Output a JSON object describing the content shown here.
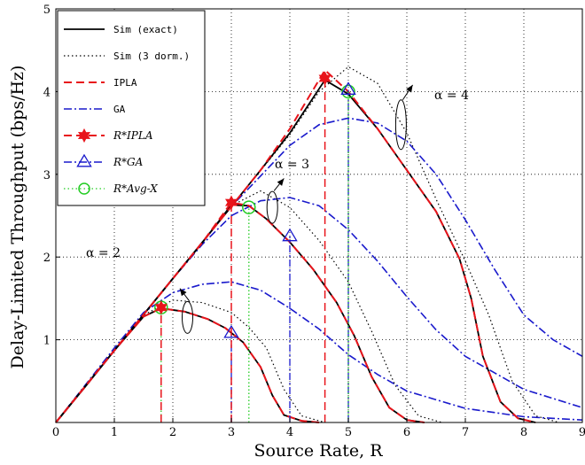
{
  "chart_data": {
    "type": "line",
    "title": "",
    "xlabel": "Source Rate, R",
    "ylabel": "Delay-Limited Throughput (bps/Hz)",
    "xlim": [
      0,
      9
    ],
    "ylim": [
      0,
      5
    ],
    "xticks": [
      "0",
      "1",
      "2",
      "3",
      "4",
      "5",
      "6",
      "7",
      "8",
      "9"
    ],
    "yticks": [
      "1",
      "2",
      "3",
      "4",
      "5"
    ],
    "grid": true,
    "legend_position": "top-left",
    "legend": [
      {
        "label": "Sim (exact)",
        "style": "solid",
        "color": "#000000"
      },
      {
        "label": "Sim (3 dorm.)",
        "style": "dotted",
        "color": "#000000"
      },
      {
        "label": "IPLA",
        "style": "dashed",
        "color": "#e8141b"
      },
      {
        "label": "GA",
        "style": "dashdot",
        "color": "#1a1acc"
      },
      {
        "label": "R*IPLA",
        "style": "dashed",
        "marker": "hexagram",
        "color": "#e8141b"
      },
      {
        "label": "R*GA",
        "style": "dashdot",
        "marker": "triangle",
        "color": "#1a1acc"
      },
      {
        "label": "R*Avg-X",
        "style": "dotted",
        "marker": "circle",
        "color": "#22cc22"
      }
    ],
    "groups": [
      {
        "alpha_label": "α = 2",
        "sim_exact": {
          "x": [
            0,
            0.5,
            1,
            1.5,
            1.8,
            2.2,
            2.6,
            2.9,
            3.2,
            3.5,
            3.7,
            3.9,
            4.2,
            4.5
          ],
          "y": [
            0,
            0.43,
            0.87,
            1.28,
            1.38,
            1.34,
            1.25,
            1.14,
            0.97,
            0.67,
            0.33,
            0.09,
            0.02,
            0
          ]
        },
        "sim_dorm": {
          "x": [
            0,
            0.5,
            1,
            1.5,
            2,
            2.5,
            3,
            3.3,
            3.6,
            3.9,
            4.2,
            4.6
          ],
          "y": [
            0,
            0.43,
            0.87,
            1.3,
            1.48,
            1.45,
            1.33,
            1.15,
            0.9,
            0.4,
            0.08,
            0
          ]
        },
        "ipla": {
          "x": [
            0,
            0.5,
            1,
            1.5,
            1.8,
            2.2,
            2.6,
            2.9,
            3.2,
            3.5,
            3.7,
            3.9,
            4.2,
            4.5
          ],
          "y": [
            0,
            0.43,
            0.87,
            1.28,
            1.38,
            1.34,
            1.25,
            1.14,
            0.97,
            0.67,
            0.33,
            0.09,
            0.02,
            0
          ]
        },
        "ga": {
          "x": [
            0,
            0.5,
            1,
            1.5,
            2,
            2.5,
            3,
            3.5,
            4,
            4.5,
            5,
            5.5,
            6,
            7,
            8,
            9
          ],
          "y": [
            0,
            0.45,
            0.9,
            1.33,
            1.57,
            1.67,
            1.7,
            1.6,
            1.38,
            1.13,
            0.82,
            0.58,
            0.38,
            0.17,
            0.07,
            0.03
          ]
        },
        "r_ipla": {
          "x": 1.8,
          "y": 1.39
        },
        "r_ga": {
          "x": 3.0,
          "y": 1.08
        },
        "r_avg": {
          "x": 1.8,
          "y": 1.39
        }
      },
      {
        "alpha_label": "α = 3",
        "sim_exact": {
          "x": [
            0,
            1,
            2,
            2.5,
            3,
            3.3,
            3.6,
            4,
            4.4,
            4.8,
            5.1,
            5.4,
            5.7,
            6,
            6.3
          ],
          "y": [
            0,
            0.87,
            1.74,
            2.17,
            2.63,
            2.62,
            2.46,
            2.18,
            1.85,
            1.45,
            1.05,
            0.55,
            0.18,
            0.03,
            0
          ]
        },
        "sim_dorm": {
          "x": [
            0,
            1,
            2,
            2.5,
            3,
            3.5,
            4,
            4.5,
            5,
            5.4,
            5.8,
            6.2,
            6.6
          ],
          "y": [
            0,
            0.87,
            1.74,
            2.17,
            2.62,
            2.8,
            2.6,
            2.2,
            1.7,
            1.1,
            0.45,
            0.08,
            0
          ]
        },
        "ipla": {
          "x": [
            0,
            1,
            2,
            2.5,
            3,
            3.3,
            3.6,
            4,
            4.4,
            4.8,
            5.1,
            5.4,
            5.7,
            6,
            6.3
          ],
          "y": [
            0,
            0.87,
            1.74,
            2.17,
            2.66,
            2.62,
            2.46,
            2.18,
            1.85,
            1.45,
            1.05,
            0.55,
            0.18,
            0.03,
            0
          ]
        },
        "ga": {
          "x": [
            0,
            1,
            2,
            2.5,
            3,
            3.5,
            4,
            4.5,
            5,
            5.5,
            6,
            6.5,
            7,
            8,
            9
          ],
          "y": [
            0,
            0.87,
            1.74,
            2.15,
            2.5,
            2.68,
            2.72,
            2.62,
            2.33,
            1.95,
            1.52,
            1.12,
            0.8,
            0.4,
            0.18
          ]
        },
        "r_ipla": {
          "x": 3.0,
          "y": 2.66
        },
        "r_ga": {
          "x": 4.0,
          "y": 2.25
        },
        "r_avg": {
          "x": 3.3,
          "y": 2.6
        }
      },
      {
        "alpha_label": "α = 4",
        "sim_exact": {
          "x": [
            0,
            1,
            2,
            3,
            3.5,
            4,
            4.6,
            5,
            5.5,
            6,
            6.5,
            6.9,
            7.1,
            7.3,
            7.6,
            7.9,
            8.2
          ],
          "y": [
            0,
            0.87,
            1.74,
            2.61,
            3.05,
            3.5,
            4.14,
            3.97,
            3.55,
            3.05,
            2.55,
            1.98,
            1.5,
            0.8,
            0.25,
            0.05,
            0
          ]
        },
        "sim_dorm": {
          "x": [
            0,
            1,
            2,
            3,
            4,
            4.5,
            5,
            5.5,
            6,
            6.5,
            7,
            7.4,
            7.8,
            8.2,
            8.6
          ],
          "y": [
            0,
            0.87,
            1.74,
            2.61,
            3.48,
            4.0,
            4.3,
            4.1,
            3.5,
            2.7,
            1.95,
            1.3,
            0.5,
            0.08,
            0
          ]
        },
        "ipla": {
          "x": [
            0,
            1,
            2,
            3,
            3.5,
            4,
            4.6,
            5,
            5.5,
            6,
            6.5,
            6.9,
            7.1,
            7.3,
            7.6,
            7.9,
            8.2
          ],
          "y": [
            0,
            0.87,
            1.74,
            2.61,
            3.05,
            3.55,
            4.26,
            4.0,
            3.55,
            3.05,
            2.55,
            1.98,
            1.5,
            0.8,
            0.25,
            0.05,
            0
          ]
        },
        "ga": {
          "x": [
            0,
            1,
            2,
            3,
            4,
            4.5,
            5,
            5.5,
            6,
            6.5,
            7,
            7.5,
            8,
            8.5,
            9
          ],
          "y": [
            0,
            0.87,
            1.74,
            2.61,
            3.35,
            3.6,
            3.68,
            3.62,
            3.4,
            3.0,
            2.45,
            1.85,
            1.3,
            1.0,
            0.8
          ]
        },
        "r_ipla": {
          "x": 4.6,
          "y": 4.16
        },
        "r_ga": {
          "x": 5.0,
          "y": 4.02
        },
        "r_avg": {
          "x": 5.0,
          "y": 4.0
        }
      }
    ]
  },
  "colors": {
    "sim_exact": "#000000",
    "sim_dorm": "#000000",
    "ipla": "#e8141b",
    "ga": "#1a1acc",
    "avg": "#22cc22",
    "grid": "#000000"
  }
}
